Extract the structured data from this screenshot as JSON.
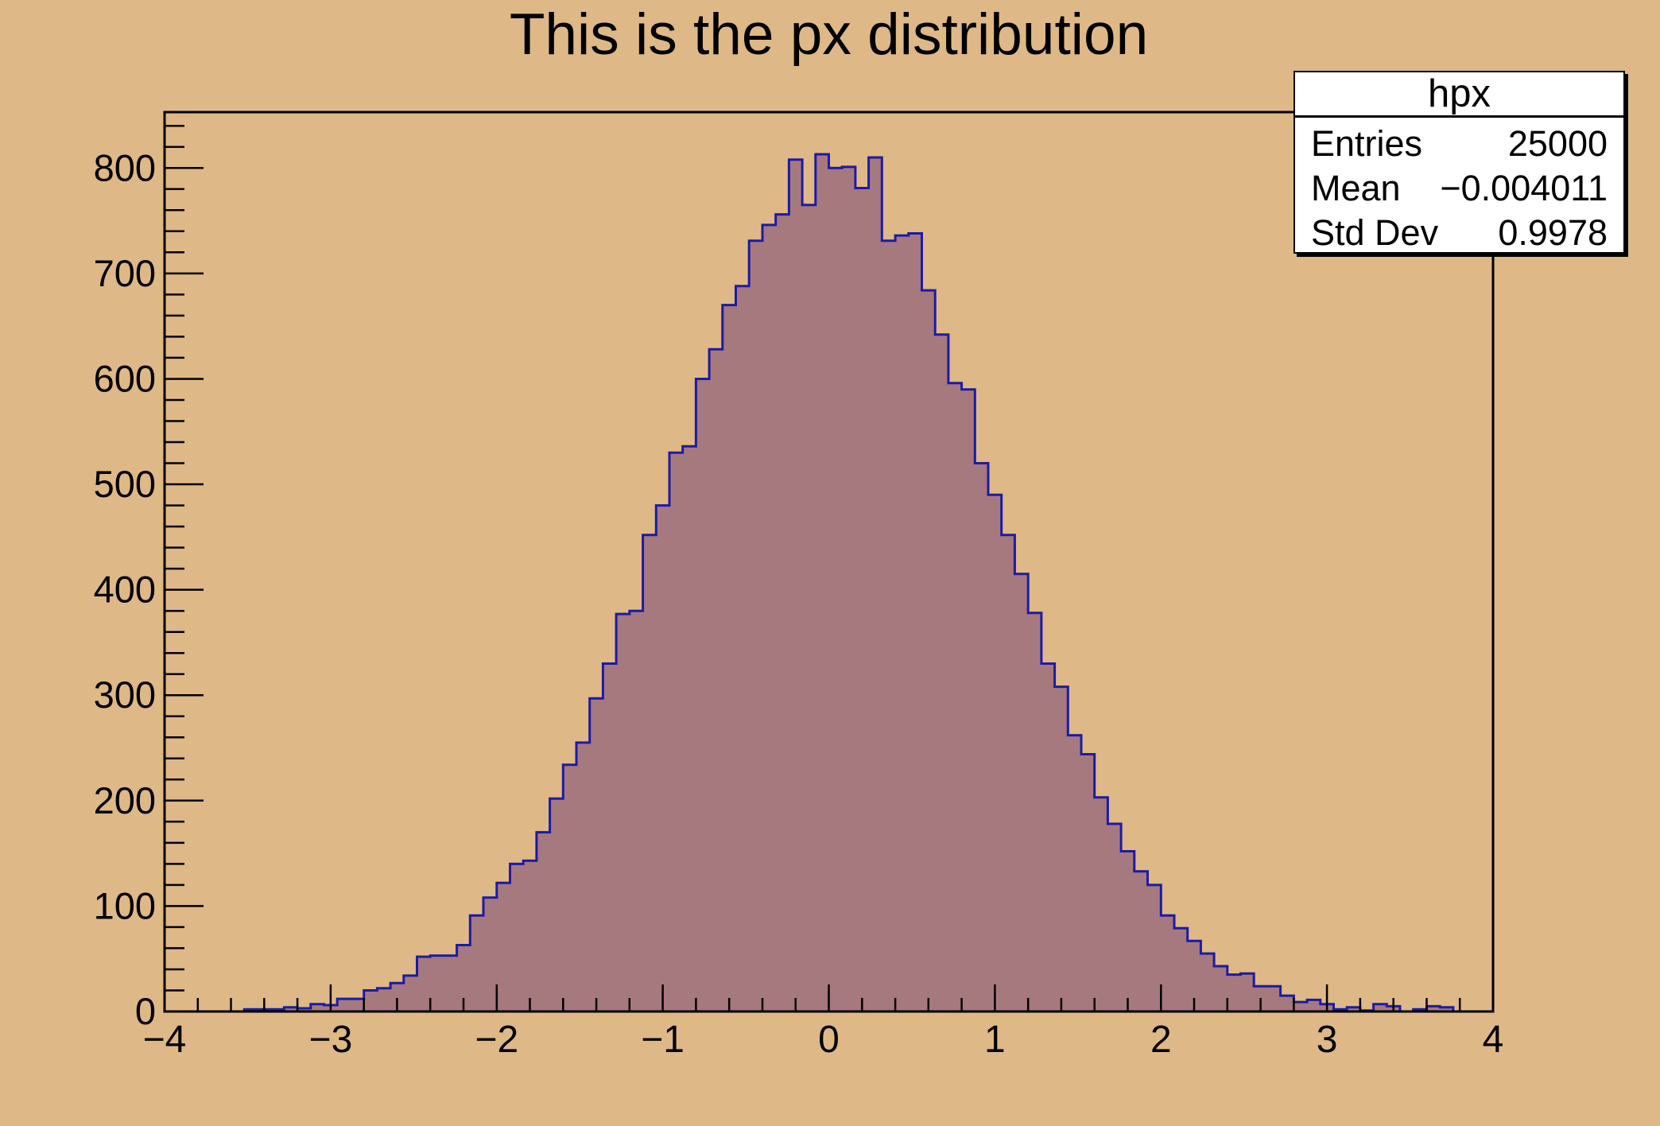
{
  "title": "This is the px distribution",
  "stats": {
    "name": "hpx",
    "rows": [
      {
        "label": "Entries",
        "value": "25000"
      },
      {
        "label": "Mean",
        "value": "−0.004011"
      },
      {
        "label": "Std Dev",
        "value": "0.9978"
      }
    ]
  },
  "axes": {
    "x": {
      "min": -4,
      "max": 4,
      "major_ticks": [
        -4,
        -3,
        -2,
        -1,
        0,
        1,
        2,
        3,
        4
      ],
      "tick_labels": [
        "−4",
        "−3",
        "−2",
        "−1",
        "0",
        "1",
        "2",
        "3",
        "4"
      ],
      "minor_step": 0.2
    },
    "y": {
      "min": 0,
      "max": 853,
      "major_ticks": [
        0,
        100,
        200,
        300,
        400,
        500,
        600,
        700,
        800
      ],
      "tick_labels": [
        "0",
        "100",
        "200",
        "300",
        "400",
        "500",
        "600",
        "700",
        "800"
      ],
      "minor_step": 20
    }
  },
  "chart_data": {
    "type": "bar",
    "subtype": "histogram-step",
    "title": "This is the px distribution",
    "name": "hpx",
    "entries": 25000,
    "mean": -0.004011,
    "std_dev": 0.9978,
    "bins": 100,
    "xmin": -4,
    "xmax": 4,
    "bin_width": 0.08,
    "xlim": [
      -4,
      4
    ],
    "ylim": [
      0,
      853
    ],
    "grid": false,
    "legend_position": "none",
    "values": [
      0,
      0,
      0,
      0,
      0,
      0,
      2,
      2,
      2,
      4,
      3,
      7,
      6,
      12,
      12,
      20,
      22,
      27,
      34,
      52,
      53,
      53,
      63,
      91,
      108,
      122,
      140,
      143,
      170,
      202,
      234,
      255,
      297,
      330,
      377,
      380,
      452,
      480,
      530,
      536,
      600,
      628,
      670,
      688,
      731,
      746,
      756,
      808,
      765,
      813,
      800,
      801,
      781,
      810,
      731,
      736,
      738,
      684,
      642,
      596,
      590,
      520,
      490,
      452,
      415,
      378,
      330,
      308,
      262,
      244,
      203,
      178,
      152,
      133,
      120,
      91,
      79,
      67,
      55,
      43,
      35,
      36,
      24,
      24,
      15,
      9,
      11,
      7,
      2,
      4,
      1,
      7,
      5,
      0,
      2,
      5,
      4,
      0,
      0,
      0
    ],
    "colors": {
      "background": "#deb887",
      "fill": "#a6797e",
      "line": "#1c1ba6",
      "frame": "#000000",
      "text": "#000000",
      "stats_background": "#ffffff"
    }
  }
}
